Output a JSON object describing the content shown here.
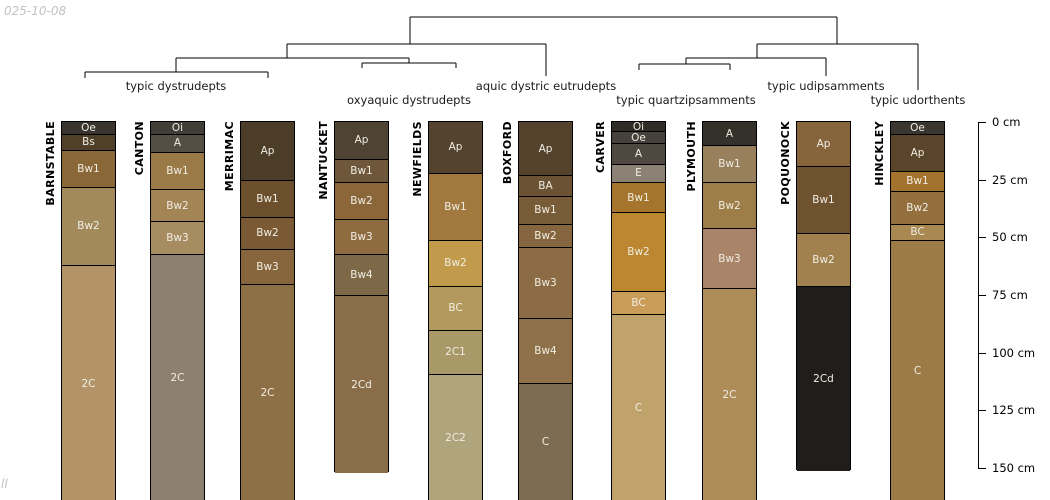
{
  "watermarks": {
    "top_left": "025-10-08",
    "bottom_left": "ll"
  },
  "chart_data": {
    "type": "soil-horizon-depth-columns",
    "depth_axis": {
      "side": "right",
      "unit": "cm",
      "min_cm": 0,
      "max_cm": 150,
      "ticks": [
        {
          "cm": 0,
          "label": "0 cm"
        },
        {
          "cm": 25,
          "label": "25 cm"
        },
        {
          "cm": 50,
          "label": "50 cm"
        },
        {
          "cm": 75,
          "label": "75 cm"
        },
        {
          "cm": 100,
          "label": "100 cm"
        },
        {
          "cm": 125,
          "label": "125 cm"
        },
        {
          "cm": 150,
          "label": "150 cm"
        }
      ]
    },
    "dendrogram_groups": [
      {
        "taxon": "typic dystrudepts",
        "columns": [
          "BARNSTABLE",
          "CANTON",
          "MERRIMAC"
        ]
      },
      {
        "taxon": "oxyaquic dystrudepts",
        "columns": [
          "NANTUCKET",
          "NEWFIELDS"
        ]
      },
      {
        "taxon": "aquic dystric eutrudepts",
        "columns": [
          "BOXFORD"
        ]
      },
      {
        "taxon": "typic quartzipsamments",
        "columns": [
          "CARVER",
          "PLYMOUTH"
        ]
      },
      {
        "taxon": "typic udipsamments",
        "columns": [
          "POQUONOCK"
        ]
      },
      {
        "taxon": "typic udorthents",
        "columns": [
          "HINCKLEY"
        ]
      }
    ],
    "columns": [
      {
        "name": "BARNSTABLE",
        "horizons": [
          {
            "label": "Oe",
            "top_cm": 0,
            "bottom_cm": 5,
            "color": "#39352e"
          },
          {
            "label": "Bs",
            "top_cm": 5,
            "bottom_cm": 12,
            "color": "#50402a"
          },
          {
            "label": "Bw1",
            "top_cm": 12,
            "bottom_cm": 28,
            "color": "#8a6737"
          },
          {
            "label": "Bw2",
            "top_cm": 28,
            "bottom_cm": 62,
            "color": "#a28a5c"
          },
          {
            "label": "2C",
            "top_cm": 62,
            "bottom_cm": 164,
            "color": "#b29468"
          }
        ]
      },
      {
        "name": "CANTON",
        "horizons": [
          {
            "label": "Oi",
            "top_cm": 0,
            "bottom_cm": 5,
            "color": "#413d37"
          },
          {
            "label": "A",
            "top_cm": 5,
            "bottom_cm": 13,
            "color": "#544e44"
          },
          {
            "label": "Bw1",
            "top_cm": 13,
            "bottom_cm": 29,
            "color": "#9a7b48"
          },
          {
            "label": "Bw2",
            "top_cm": 29,
            "bottom_cm": 43,
            "color": "#a28455"
          },
          {
            "label": "Bw3",
            "top_cm": 43,
            "bottom_cm": 57,
            "color": "#a68c60"
          },
          {
            "label": "2C",
            "top_cm": 57,
            "bottom_cm": 164,
            "color": "#8d8070"
          }
        ]
      },
      {
        "name": "MERRIMAC",
        "horizons": [
          {
            "label": "Ap",
            "top_cm": 0,
            "bottom_cm": 25,
            "color": "#4c3d28"
          },
          {
            "label": "Bw1",
            "top_cm": 25,
            "bottom_cm": 41,
            "color": "#6c4f2c"
          },
          {
            "label": "Bw2",
            "top_cm": 41,
            "bottom_cm": 55,
            "color": "#7a5a34"
          },
          {
            "label": "Bw3",
            "top_cm": 55,
            "bottom_cm": 70,
            "color": "#87663d"
          },
          {
            "label": "2C",
            "top_cm": 70,
            "bottom_cm": 164,
            "color": "#8d7046"
          }
        ]
      },
      {
        "name": "NANTUCKET",
        "horizons": [
          {
            "label": "Ap",
            "top_cm": 0,
            "bottom_cm": 16,
            "color": "#4f4433"
          },
          {
            "label": "Bw1",
            "top_cm": 16,
            "bottom_cm": 26,
            "color": "#6e573a"
          },
          {
            "label": "Bw2",
            "top_cm": 26,
            "bottom_cm": 42,
            "color": "#8a6639"
          },
          {
            "label": "Bw3",
            "top_cm": 42,
            "bottom_cm": 57,
            "color": "#8e6c40"
          },
          {
            "label": "Bw4",
            "top_cm": 57,
            "bottom_cm": 75,
            "color": "#7d6848"
          },
          {
            "label": "2Cd",
            "top_cm": 75,
            "bottom_cm": 152,
            "color": "#8a6e4a"
          }
        ]
      },
      {
        "name": "NEWFIELDS",
        "horizons": [
          {
            "label": "Ap",
            "top_cm": 0,
            "bottom_cm": 22,
            "color": "#53432f"
          },
          {
            "label": "Bw1",
            "top_cm": 22,
            "bottom_cm": 51,
            "color": "#a1793f"
          },
          {
            "label": "Bw2",
            "top_cm": 51,
            "bottom_cm": 71,
            "color": "#c19a4b"
          },
          {
            "label": "BC",
            "top_cm": 71,
            "bottom_cm": 90,
            "color": "#b4995e"
          },
          {
            "label": "2C1",
            "top_cm": 90,
            "bottom_cm": 109,
            "color": "#a99868"
          },
          {
            "label": "2C2",
            "top_cm": 109,
            "bottom_cm": 164,
            "color": "#afa47c"
          }
        ]
      },
      {
        "name": "BOXFORD",
        "horizons": [
          {
            "label": "Ap",
            "top_cm": 0,
            "bottom_cm": 23,
            "color": "#54422d"
          },
          {
            "label": "BA",
            "top_cm": 23,
            "bottom_cm": 32,
            "color": "#6a5233"
          },
          {
            "label": "Bw1",
            "top_cm": 32,
            "bottom_cm": 44,
            "color": "#785c37"
          },
          {
            "label": "Bw2",
            "top_cm": 44,
            "bottom_cm": 54,
            "color": "#85663e"
          },
          {
            "label": "Bw3",
            "top_cm": 54,
            "bottom_cm": 85,
            "color": "#8b6c44"
          },
          {
            "label": "Bw4",
            "top_cm": 85,
            "bottom_cm": 113,
            "color": "#8e7149"
          },
          {
            "label": "C",
            "top_cm": 113,
            "bottom_cm": 164,
            "color": "#7d6c51"
          }
        ]
      },
      {
        "name": "CARVER",
        "horizons": [
          {
            "label": "Oi",
            "top_cm": 0,
            "bottom_cm": 4,
            "color": "#2f2c27"
          },
          {
            "label": "Oe",
            "top_cm": 4,
            "bottom_cm": 9,
            "color": "#46413a"
          },
          {
            "label": "A",
            "top_cm": 9,
            "bottom_cm": 18,
            "color": "#4f4840"
          },
          {
            "label": "E",
            "top_cm": 18,
            "bottom_cm": 26,
            "color": "#8b8275"
          },
          {
            "label": "Bw1",
            "top_cm": 26,
            "bottom_cm": 39,
            "color": "#a6752d"
          },
          {
            "label": "Bw2",
            "top_cm": 39,
            "bottom_cm": 73,
            "color": "#bc8730"
          },
          {
            "label": "BC",
            "top_cm": 73,
            "bottom_cm": 83,
            "color": "#c99c58"
          },
          {
            "label": "C",
            "top_cm": 83,
            "bottom_cm": 164,
            "color": "#c0a36b"
          }
        ]
      },
      {
        "name": "PLYMOUTH",
        "horizons": [
          {
            "label": "A",
            "top_cm": 0,
            "bottom_cm": 10,
            "color": "#34302a"
          },
          {
            "label": "Bw1",
            "top_cm": 10,
            "bottom_cm": 26,
            "color": "#97805b"
          },
          {
            "label": "Bw2",
            "top_cm": 26,
            "bottom_cm": 46,
            "color": "#9d7d48"
          },
          {
            "label": "Bw3",
            "top_cm": 46,
            "bottom_cm": 72,
            "color": "#a98468"
          },
          {
            "label": "2C",
            "top_cm": 72,
            "bottom_cm": 164,
            "color": "#ae8c58"
          }
        ]
      },
      {
        "name": "POQUONOCK",
        "horizons": [
          {
            "label": "Ap",
            "top_cm": 0,
            "bottom_cm": 19,
            "color": "#87653c"
          },
          {
            "label": "Bw1",
            "top_cm": 19,
            "bottom_cm": 48,
            "color": "#6f5230"
          },
          {
            "label": "Bw2",
            "top_cm": 48,
            "bottom_cm": 71,
            "color": "#a1824f"
          },
          {
            "label": "2Cd",
            "top_cm": 71,
            "bottom_cm": 151,
            "color": "#1f1e1b"
          }
        ]
      },
      {
        "name": "HINCKLEY",
        "horizons": [
          {
            "label": "Oe",
            "top_cm": 0,
            "bottom_cm": 5,
            "color": "#3a352e"
          },
          {
            "label": "Ap",
            "top_cm": 5,
            "bottom_cm": 21,
            "color": "#5a452b"
          },
          {
            "label": "Bw1",
            "top_cm": 21,
            "bottom_cm": 30,
            "color": "#a3732e"
          },
          {
            "label": "Bw2",
            "top_cm": 30,
            "bottom_cm": 44,
            "color": "#926f3c"
          },
          {
            "label": "BC",
            "top_cm": 44,
            "bottom_cm": 51,
            "color": "#a98851"
          },
          {
            "label": "C",
            "top_cm": 51,
            "bottom_cm": 164,
            "color": "#9c7b47"
          }
        ]
      }
    ]
  }
}
